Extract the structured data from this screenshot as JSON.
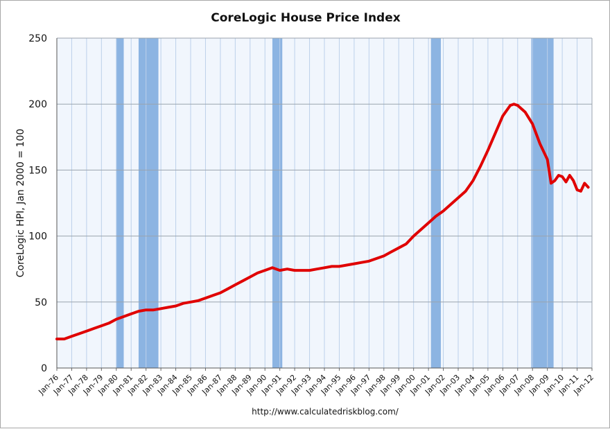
{
  "colors": {
    "line": "#e00000",
    "recession": "#8cb4e2",
    "plot_background": "#f1f6fd",
    "vertical_grid": "#bcd0ea",
    "horizontal_grid": "#9aa3ad"
  },
  "chart_data": {
    "type": "line",
    "title": "CoreLogic House Price Index",
    "xlabel": "",
    "ylabel": "CoreLogic HPI, Jan 2000 = 100",
    "source": "http://www.calculatedriskblog.com/",
    "ylim": [
      0,
      250
    ],
    "xlim": [
      "1976-01",
      "2012-01"
    ],
    "grid": true,
    "y_ticks": [
      "0",
      "50",
      "100",
      "150",
      "200",
      "250"
    ],
    "x_ticks": [
      "Jan-76",
      "Jan-77",
      "Jan-78",
      "Jan-79",
      "Jan-80",
      "Jan-81",
      "Jan-82",
      "Jan-83",
      "Jan-84",
      "Jan-85",
      "Jan-86",
      "Jan-87",
      "Jan-88",
      "Jan-89",
      "Jan-90",
      "Jan-91",
      "Jan-92",
      "Jan-93",
      "Jan-94",
      "Jan-95",
      "Jan-96",
      "Jan-97",
      "Jan-98",
      "Jan-99",
      "Jan-00",
      "Jan-01",
      "Jan-02",
      "Jan-03",
      "Jan-04",
      "Jan-05",
      "Jan-06",
      "Jan-07",
      "Jan-08",
      "Jan-09",
      "Jan-10",
      "Jan-11",
      "Jan-12"
    ],
    "recessions": [
      {
        "start": "1980-01",
        "end": "1980-07"
      },
      {
        "start": "1981-07",
        "end": "1982-11"
      },
      {
        "start": "1990-07",
        "end": "1991-03"
      },
      {
        "start": "2001-03",
        "end": "2001-11"
      },
      {
        "start": "2007-12",
        "end": "2009-06"
      }
    ],
    "series": [
      {
        "points": [
          [
            "1976-01",
            22
          ],
          [
            "1976-07",
            22
          ],
          [
            "1977-01",
            24
          ],
          [
            "1977-07",
            26
          ],
          [
            "1978-01",
            28
          ],
          [
            "1978-07",
            30
          ],
          [
            "1979-01",
            32
          ],
          [
            "1979-07",
            34
          ],
          [
            "1980-01",
            37
          ],
          [
            "1980-07",
            39
          ],
          [
            "1981-01",
            41
          ],
          [
            "1981-07",
            43
          ],
          [
            "1982-01",
            44
          ],
          [
            "1982-07",
            44
          ],
          [
            "1983-01",
            45
          ],
          [
            "1983-07",
            46
          ],
          [
            "1984-01",
            47
          ],
          [
            "1984-07",
            49
          ],
          [
            "1985-01",
            50
          ],
          [
            "1985-07",
            51
          ],
          [
            "1986-01",
            53
          ],
          [
            "1986-07",
            55
          ],
          [
            "1987-01",
            57
          ],
          [
            "1987-07",
            60
          ],
          [
            "1988-01",
            63
          ],
          [
            "1988-07",
            66
          ],
          [
            "1989-01",
            69
          ],
          [
            "1989-07",
            72
          ],
          [
            "1990-01",
            74
          ],
          [
            "1990-07",
            76
          ],
          [
            "1991-01",
            74
          ],
          [
            "1991-07",
            75
          ],
          [
            "1992-01",
            74
          ],
          [
            "1992-07",
            74
          ],
          [
            "1993-01",
            74
          ],
          [
            "1993-07",
            75
          ],
          [
            "1994-01",
            76
          ],
          [
            "1994-07",
            77
          ],
          [
            "1995-01",
            77
          ],
          [
            "1995-07",
            78
          ],
          [
            "1996-01",
            79
          ],
          [
            "1996-07",
            80
          ],
          [
            "1997-01",
            81
          ],
          [
            "1997-07",
            83
          ],
          [
            "1998-01",
            85
          ],
          [
            "1998-07",
            88
          ],
          [
            "1999-01",
            91
          ],
          [
            "1999-07",
            94
          ],
          [
            "2000-01",
            100
          ],
          [
            "2000-07",
            105
          ],
          [
            "2001-01",
            110
          ],
          [
            "2001-07",
            115
          ],
          [
            "2002-01",
            119
          ],
          [
            "2002-07",
            124
          ],
          [
            "2003-01",
            129
          ],
          [
            "2003-07",
            134
          ],
          [
            "2004-01",
            142
          ],
          [
            "2004-07",
            153
          ],
          [
            "2005-01",
            165
          ],
          [
            "2005-07",
            178
          ],
          [
            "2006-01",
            191
          ],
          [
            "2006-07",
            199
          ],
          [
            "2006-10",
            200
          ],
          [
            "2007-01",
            199
          ],
          [
            "2007-07",
            194
          ],
          [
            "2008-01",
            185
          ],
          [
            "2008-07",
            170
          ],
          [
            "2009-01",
            158
          ],
          [
            "2009-04",
            140
          ],
          [
            "2009-07",
            142
          ],
          [
            "2009-10",
            146
          ],
          [
            "2010-01",
            145
          ],
          [
            "2010-04",
            141
          ],
          [
            "2010-07",
            146
          ],
          [
            "2010-10",
            142
          ],
          [
            "2011-01",
            135
          ],
          [
            "2011-04",
            134
          ],
          [
            "2011-07",
            140
          ],
          [
            "2011-10",
            137
          ]
        ]
      }
    ]
  }
}
